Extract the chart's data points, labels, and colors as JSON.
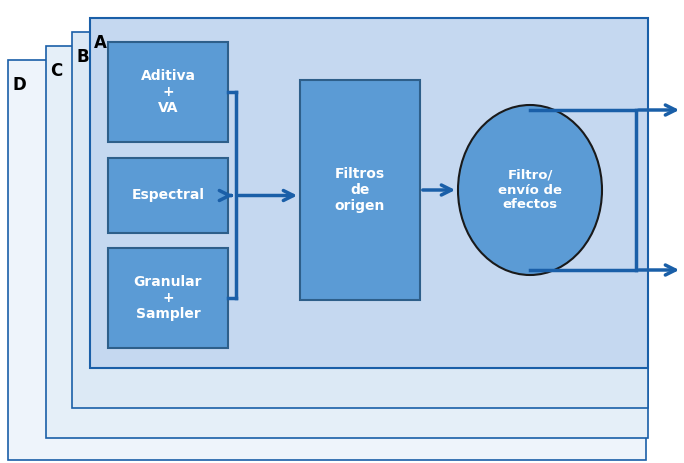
{
  "bg_color": "#ffffff",
  "panel_A_color": "#c5d8f0",
  "panel_B_color": "#dce9f5",
  "panel_C_color": "#e5eff8",
  "panel_D_color": "#eef4fb",
  "box_fill": "#5b9bd5",
  "box_edge": "#2e5f8a",
  "circle_fill": "#5b9bd5",
  "circle_edge": "#1a1a1a",
  "arrow_color": "#1a5fa8",
  "bracket_color": "#1a5fa8",
  "label_A": "A",
  "label_B": "B",
  "label_C": "C",
  "label_D": "D",
  "text_aditiva": "Aditiva\n+\nVA",
  "text_espectral": "Espectral",
  "text_granular": "Granular\n+\nSampler",
  "text_filtros": "Filtros\nde\norigen",
  "text_circle": "Filtro/\nenvío de\nefectos",
  "fig_w": 6.84,
  "fig_h": 4.63,
  "dpi": 100
}
